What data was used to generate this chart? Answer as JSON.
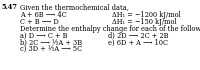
{
  "title_num": "5.47",
  "title_text": "Given the thermochemical data,",
  "rxn1": "A + 6B ⟶ 4C",
  "rxn2": "C + B ⟶ D",
  "enth1": "ΔH₁ = −1200 kJ/mol",
  "enth2": "ΔH₁ = −150 kJ/mol",
  "determine_text": "Determine the enthalpy change for each of the following:",
  "part_a": "a) D ⟶ C + B",
  "part_b": "b) 2C ⟶ ½A + 3B",
  "part_c": "c) 3D + ½A ⟶ 5C",
  "part_d": "d) 2D ⟶ 2C + 2B",
  "part_e": "e) 6D + A ⟶ 10C",
  "bg_color": "#ffffff",
  "text_color": "#000000",
  "fontsize": 4.8
}
